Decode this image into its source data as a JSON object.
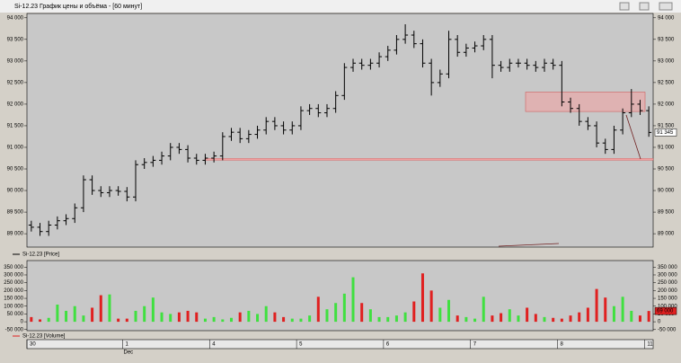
{
  "window_title": "Si-12.23 График цены и объёма - [60 минут]",
  "month_label": "Dec",
  "chart_data": [
    {
      "type": "ohlc",
      "series": [
        {
          "name": "Si-12.23 [Price]",
          "color": "#000000",
          "open": [
            89200,
            89150,
            89050,
            89200,
            89300,
            89350,
            89600,
            90250,
            90000,
            89950,
            90000,
            89980,
            89850,
            90600,
            90650,
            90700,
            90800,
            91000,
            90950,
            90750,
            90700,
            90750,
            90800,
            91250,
            91350,
            91200,
            91300,
            91400,
            91600,
            91500,
            91400,
            91500,
            91850,
            91900,
            91800,
            91900,
            92200,
            92850,
            92950,
            92900,
            92950,
            93100,
            93250,
            93500,
            93600,
            93400,
            92950,
            92500,
            92700,
            93500,
            93200,
            93300,
            93350,
            93500,
            92900,
            92850,
            92950,
            92950,
            92900,
            92850,
            92950,
            92900,
            92050,
            91900,
            91600,
            91500,
            91100,
            90950,
            91400,
            91800,
            92000,
            91850
          ],
          "high": [
            89300,
            89250,
            89300,
            89400,
            89450,
            89700,
            90350,
            90350,
            90100,
            90100,
            90100,
            90080,
            90700,
            90750,
            90800,
            90900,
            91100,
            91100,
            91050,
            90850,
            90850,
            90900,
            91350,
            91450,
            91450,
            91400,
            91500,
            91700,
            91700,
            91600,
            91600,
            91950,
            92000,
            92000,
            92000,
            92300,
            92950,
            93050,
            93050,
            93050,
            93200,
            93350,
            93600,
            93850,
            93700,
            93500,
            93050,
            92800,
            93700,
            93600,
            93400,
            93450,
            93600,
            93600,
            93000,
            93050,
            93050,
            93050,
            93000,
            93050,
            93050,
            93000,
            92150,
            92000,
            91700,
            91600,
            91200,
            91500,
            91900,
            92350,
            92100,
            91950
          ],
          "low": [
            89050,
            88950,
            88950,
            89100,
            89200,
            89250,
            89500,
            89900,
            89850,
            89850,
            89880,
            89750,
            89750,
            90500,
            90550,
            90600,
            90700,
            90850,
            90650,
            90600,
            90600,
            90650,
            90700,
            91150,
            91100,
            91100,
            91200,
            91300,
            91400,
            91300,
            91300,
            91400,
            91750,
            91700,
            91700,
            91800,
            92100,
            92750,
            92800,
            92800,
            92850,
            93000,
            93150,
            93400,
            93300,
            92850,
            92200,
            92400,
            92600,
            93100,
            93100,
            93200,
            93250,
            92600,
            92750,
            92750,
            92850,
            92800,
            92750,
            92750,
            92800,
            91950,
            91800,
            91500,
            91400,
            91000,
            90850,
            90850,
            91300,
            91700,
            91750,
            91245
          ],
          "close": [
            89150,
            89050,
            89200,
            89300,
            89350,
            89600,
            90250,
            90000,
            89950,
            90000,
            89980,
            89850,
            90600,
            90650,
            90700,
            90800,
            91000,
            90950,
            90750,
            90700,
            90750,
            90800,
            91250,
            91350,
            91200,
            91300,
            91400,
            91600,
            91500,
            91400,
            91500,
            91850,
            91900,
            91800,
            91900,
            92200,
            92850,
            92950,
            92900,
            92950,
            93100,
            93250,
            93500,
            93600,
            93400,
            92950,
            92500,
            92700,
            93500,
            93200,
            93300,
            93350,
            93500,
            92900,
            92850,
            92950,
            92950,
            92900,
            92850,
            92950,
            92900,
            92050,
            91900,
            91600,
            91500,
            91100,
            90950,
            91400,
            91800,
            92000,
            91850,
            91345
          ]
        }
      ],
      "categories": [
        "30",
        null,
        null,
        null,
        null,
        null,
        null,
        null,
        null,
        null,
        null,
        "1",
        null,
        null,
        null,
        null,
        null,
        null,
        null,
        null,
        null,
        "4",
        null,
        null,
        null,
        null,
        null,
        null,
        null,
        null,
        null,
        "5",
        null,
        null,
        null,
        null,
        null,
        null,
        null,
        null,
        null,
        "6",
        null,
        null,
        null,
        null,
        null,
        null,
        null,
        null,
        null,
        "7",
        null,
        null,
        null,
        null,
        null,
        null,
        null,
        null,
        null,
        "8",
        null,
        null,
        null,
        null,
        null,
        null,
        null,
        null,
        null,
        "11"
      ],
      "last_label": "91 345",
      "ylim": [
        88690,
        94100
      ],
      "yticks": [
        {
          "value": 89000,
          "label": "89 000"
        },
        {
          "value": 89500,
          "label": "89 500"
        },
        {
          "value": 90000,
          "label": "90 000"
        },
        {
          "value": 90500,
          "label": "90 500"
        },
        {
          "value": 91000,
          "label": "91 000"
        },
        {
          "value": 91500,
          "label": "91 500"
        },
        {
          "value": 92000,
          "label": "92 000"
        },
        {
          "value": 92500,
          "label": "92 500"
        },
        {
          "value": 93000,
          "label": "93 000"
        },
        {
          "value": 93500,
          "label": "93 500"
        },
        {
          "value": 94000,
          "label": "94 000"
        }
      ],
      "grid": false
    },
    {
      "type": "bar",
      "series": [
        {
          "name": "Si-12.23 [Volume]",
          "color": "#e02020",
          "up_color": "#40e040",
          "down_color": "#e02020",
          "values": [
            30000,
            15000,
            25000,
            110000,
            70000,
            100000,
            40000,
            90000,
            170000,
            175000,
            20000,
            20000,
            70000,
            100000,
            155000,
            60000,
            50000,
            60000,
            70000,
            60000,
            20000,
            30000,
            15000,
            25000,
            60000,
            70000,
            50000,
            100000,
            60000,
            30000,
            20000,
            20000,
            40000,
            160000,
            80000,
            120000,
            180000,
            285000,
            120000,
            80000,
            30000,
            30000,
            40000,
            60000,
            130000,
            310000,
            200000,
            90000,
            140000,
            40000,
            30000,
            20000,
            160000,
            40000,
            55000,
            80000,
            40000,
            90000,
            50000,
            30000,
            25000,
            20000,
            40000,
            60000,
            90000,
            210000,
            155000,
            100000,
            160000,
            70000,
            40000,
            69000
          ]
        }
      ],
      "last_label": "69 000",
      "ylim": [
        -57000,
        392000
      ],
      "yticks": [
        {
          "value": -50000,
          "label": "-50 000"
        },
        0,
        {
          "value": 50000,
          "label": "50 000"
        },
        {
          "value": 100000,
          "label": "100 000"
        },
        {
          "value": 150000,
          "label": "150 000"
        },
        {
          "value": 200000,
          "label": "200 000"
        },
        {
          "value": 250000,
          "label": "250 000"
        },
        {
          "value": 300000,
          "label": "300 000"
        },
        {
          "value": 350000,
          "label": "350 000"
        }
      ],
      "grid": false
    }
  ]
}
